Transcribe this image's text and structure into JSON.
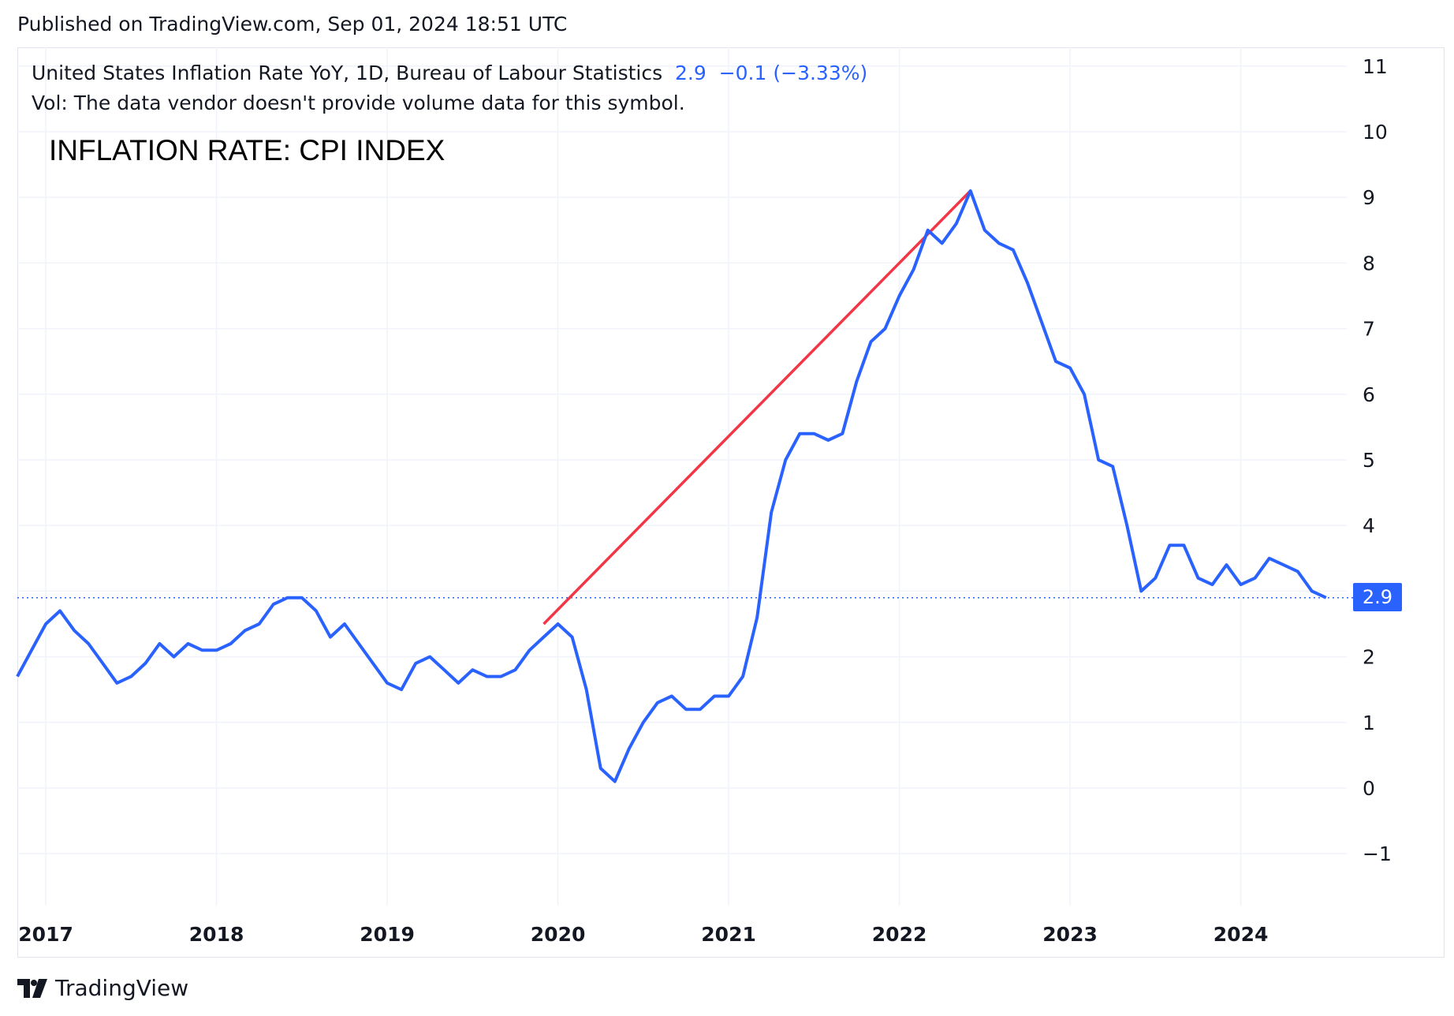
{
  "header": {
    "published": "Published on TradingView.com, Sep 01, 2024 18:51 UTC"
  },
  "legend": {
    "symbol": "United States Inflation Rate YoY, 1D, Bureau of Labour Statistics",
    "last": "2.9",
    "change": "−0.1",
    "change_pct": "(−3.33%)",
    "vol_note": "Vol: The data vendor doesn't provide volume data for this symbol."
  },
  "annotation_text": "INFLATION RATE: CPI INDEX",
  "footer": {
    "brand": "TradingView"
  },
  "colors": {
    "series": "#2962ff",
    "trendline": "#f23645",
    "grid": "#f0f3fa",
    "text": "#131722"
  },
  "chart_data": {
    "type": "line",
    "title": "INFLATION RATE: CPI INDEX",
    "xlabel": "",
    "ylabel": "",
    "x_tick_labels": [
      "2017",
      "2018",
      "2019",
      "2020",
      "2021",
      "2022",
      "2023",
      "2024"
    ],
    "y_tick_labels": [
      "−1",
      "0",
      "1",
      "2",
      "3",
      "4",
      "5",
      "6",
      "7",
      "8",
      "9",
      "10",
      "11"
    ],
    "ylim": [
      -1.8,
      11.2
    ],
    "xlim": [
      "2016-11",
      "2024-12"
    ],
    "grid": true,
    "price_scale": "right",
    "last_value_label": "2.9",
    "series": [
      {
        "x": [
          "2016-11",
          "2016-12",
          "2017-01",
          "2017-02",
          "2017-03",
          "2017-04",
          "2017-05",
          "2017-06",
          "2017-07",
          "2017-08",
          "2017-09",
          "2017-10",
          "2017-11",
          "2017-12",
          "2018-01",
          "2018-02",
          "2018-03",
          "2018-04",
          "2018-05",
          "2018-06",
          "2018-07",
          "2018-08",
          "2018-09",
          "2018-10",
          "2018-11",
          "2018-12",
          "2019-01",
          "2019-02",
          "2019-03",
          "2019-04",
          "2019-05",
          "2019-06",
          "2019-07",
          "2019-08",
          "2019-09",
          "2019-10",
          "2019-11",
          "2019-12",
          "2020-01",
          "2020-02",
          "2020-03",
          "2020-04",
          "2020-05",
          "2020-06",
          "2020-07",
          "2020-08",
          "2020-09",
          "2020-10",
          "2020-11",
          "2020-12",
          "2021-01",
          "2021-02",
          "2021-03",
          "2021-04",
          "2021-05",
          "2021-06",
          "2021-07",
          "2021-08",
          "2021-09",
          "2021-10",
          "2021-11",
          "2021-12",
          "2022-01",
          "2022-02",
          "2022-03",
          "2022-04",
          "2022-05",
          "2022-06",
          "2022-07",
          "2022-08",
          "2022-09",
          "2022-10",
          "2022-11",
          "2022-12",
          "2023-01",
          "2023-02",
          "2023-03",
          "2023-04",
          "2023-05",
          "2023-06",
          "2023-07",
          "2023-08",
          "2023-09",
          "2023-10",
          "2023-11",
          "2023-12",
          "2024-01",
          "2024-02",
          "2024-03",
          "2024-04",
          "2024-05",
          "2024-06",
          "2024-07"
        ],
        "y": [
          1.7,
          2.1,
          2.5,
          2.7,
          2.4,
          2.2,
          1.9,
          1.6,
          1.7,
          1.9,
          2.2,
          2.0,
          2.2,
          2.1,
          2.1,
          2.2,
          2.4,
          2.5,
          2.8,
          2.9,
          2.9,
          2.7,
          2.3,
          2.5,
          2.2,
          1.9,
          1.6,
          1.5,
          1.9,
          2.0,
          1.8,
          1.6,
          1.8,
          1.7,
          1.7,
          1.8,
          2.1,
          2.3,
          2.5,
          2.3,
          1.5,
          0.3,
          0.1,
          0.6,
          1.0,
          1.3,
          1.4,
          1.2,
          1.2,
          1.4,
          1.4,
          1.7,
          2.6,
          4.2,
          5.0,
          5.4,
          5.4,
          5.3,
          5.4,
          6.2,
          6.8,
          7.0,
          7.5,
          7.9,
          8.5,
          8.3,
          8.6,
          9.1,
          8.5,
          8.3,
          8.2,
          7.7,
          7.1,
          6.5,
          6.4,
          6.0,
          5.0,
          4.9,
          4.0,
          3.0,
          3.2,
          3.7,
          3.7,
          3.2,
          3.1,
          3.4,
          3.1,
          3.2,
          3.5,
          3.4,
          3.3,
          3.0,
          2.9
        ]
      }
    ],
    "trendline": {
      "from": {
        "x": "2019-12",
        "y": 2.5
      },
      "to": {
        "x": "2022-06",
        "y": 9.1
      }
    },
    "last_value_line": 2.9
  }
}
